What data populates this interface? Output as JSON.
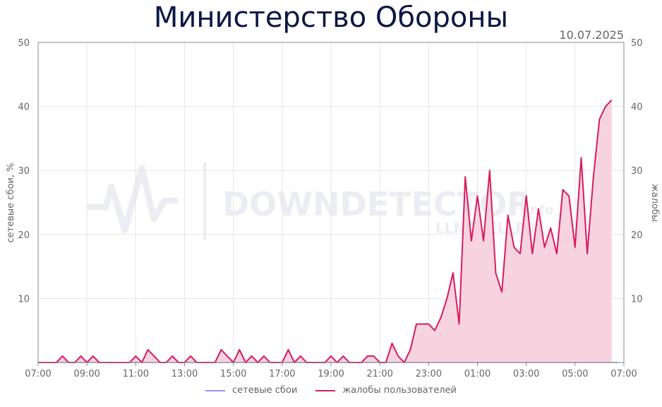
{
  "title": "Министерство Обороны",
  "date": "10.07.2025",
  "colors": {
    "outages": "#9b8ff5",
    "complaints": "#d81b60",
    "complaints_fill": "#f7d3e0",
    "grid": "#e5e5e5",
    "title": "#0b1744"
  },
  "chart_data": {
    "type": "line",
    "title": "Министерство Обороны",
    "xlabel": "",
    "ylabel_left": "сетевые сбои, %",
    "ylabel_right": "жалобы",
    "ylim": [
      0,
      50
    ],
    "y_ticks": [
      10,
      20,
      30,
      40,
      50
    ],
    "x_ticks": [
      "07:00",
      "09:00",
      "11:00",
      "13:00",
      "15:00",
      "17:00",
      "19:00",
      "21:00",
      "23:00",
      "01:00",
      "03:00",
      "05:00",
      "07:00"
    ],
    "x_start": "07:00",
    "x_step_minutes": 15,
    "grid": true,
    "legend_position": "bottom",
    "series": [
      {
        "name": "сетевые сбои",
        "values": [
          0,
          0,
          0,
          0,
          0,
          0,
          0,
          0,
          0,
          0,
          0,
          0,
          0,
          0,
          0,
          0,
          0,
          0,
          0,
          0,
          0,
          0,
          0,
          0,
          0,
          0,
          0,
          0,
          0,
          0,
          0,
          0,
          0,
          0,
          0,
          0,
          0,
          0,
          0,
          0,
          0,
          0,
          0,
          0,
          0,
          0,
          0,
          0,
          0,
          0,
          0,
          0,
          0,
          0,
          0,
          0,
          0,
          0,
          0,
          0,
          0,
          0,
          0,
          0,
          0,
          0,
          0,
          0,
          0,
          0,
          0,
          0,
          0,
          0,
          0,
          0,
          0,
          0,
          0,
          0,
          0,
          0,
          0,
          0,
          0,
          0,
          0,
          0,
          0,
          0,
          0,
          0,
          0,
          0,
          0,
          0
        ]
      },
      {
        "name": "жалобы пользователей",
        "values": [
          0,
          0,
          0,
          0,
          1,
          0,
          0,
          1,
          0,
          1,
          0,
          0,
          0,
          0,
          0,
          0,
          1,
          0,
          2,
          1,
          0,
          0,
          1,
          0,
          0,
          1,
          0,
          0,
          0,
          0,
          2,
          1,
          0,
          2,
          0,
          1,
          0,
          1,
          0,
          0,
          0,
          2,
          0,
          1,
          0,
          0,
          0,
          0,
          1,
          0,
          1,
          0,
          0,
          0,
          1,
          1,
          0,
          0,
          3,
          1,
          0,
          2,
          6,
          6,
          6,
          5,
          7,
          10,
          14,
          6,
          29,
          19,
          26,
          19,
          30,
          14,
          11,
          23,
          18,
          17,
          26,
          17,
          24,
          18,
          21,
          17,
          27,
          26,
          18,
          32,
          17,
          29,
          38,
          40,
          41
        ]
      }
    ]
  },
  "legend": {
    "outages_label": "сетевые сбои",
    "complaints_label": "жалобы пользователей"
  },
  "watermark": {
    "text": "DOWNDETECTOR",
    "suffix": "info",
    "subtext": "LLNOVELLER"
  }
}
